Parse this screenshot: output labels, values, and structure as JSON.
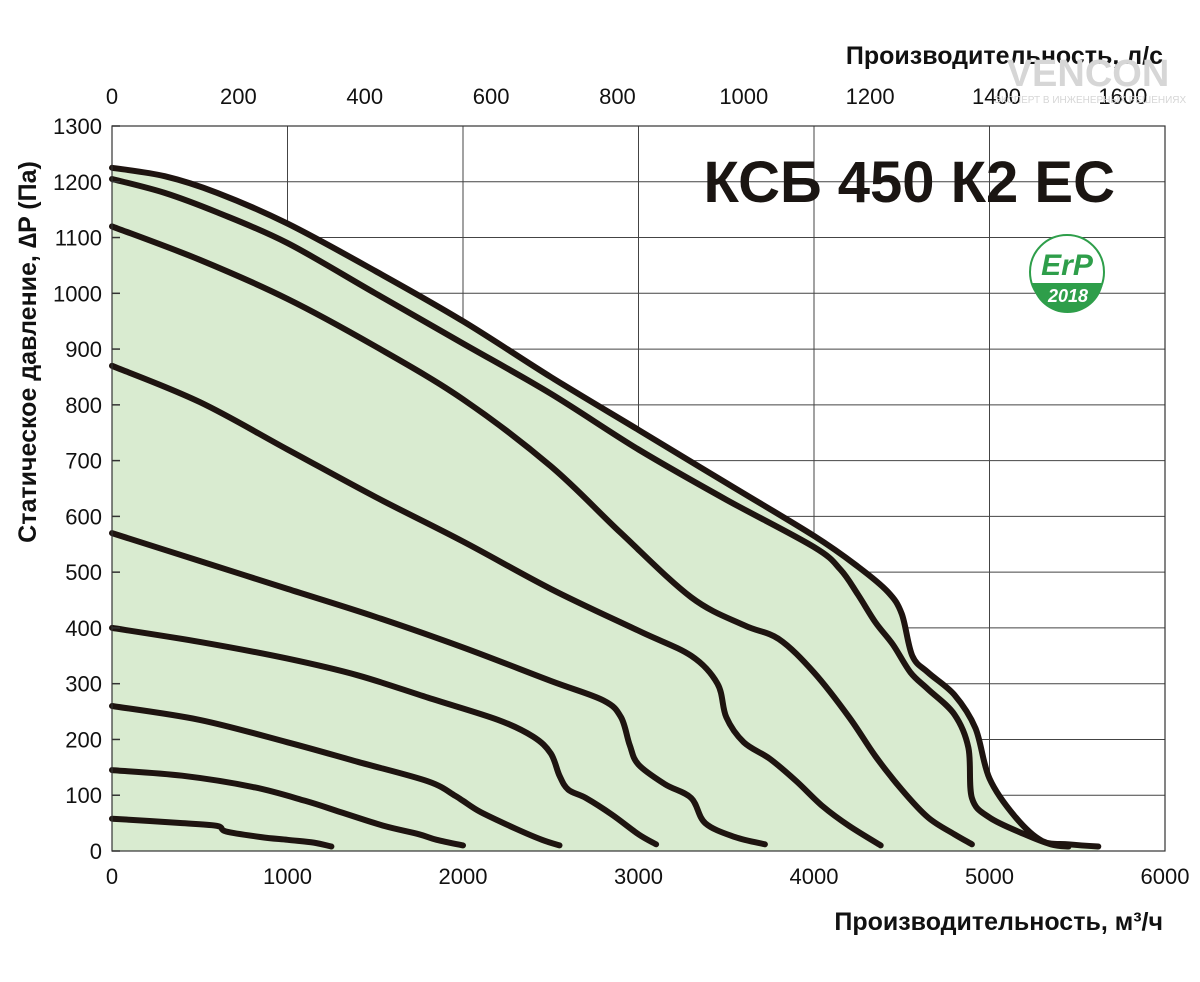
{
  "chart_data": {
    "type": "line",
    "title": "КСБ 450 К2 ЕС",
    "xlabel": "Производительность, м³/ч",
    "x2label": "Производительность, л/с",
    "ylabel": "Статическое давление, ∆P (Па)",
    "xlim": [
      0,
      6000
    ],
    "ylim": [
      0,
      1300
    ],
    "x2lim": [
      0,
      1666.67
    ],
    "x_ticks": [
      0,
      1000,
      2000,
      3000,
      4000,
      5000,
      6000
    ],
    "y_ticks": [
      0,
      100,
      200,
      300,
      400,
      500,
      600,
      700,
      800,
      900,
      1000,
      1100,
      1200,
      1300
    ],
    "x2_ticks": [
      0,
      200,
      400,
      600,
      800,
      1000,
      1200,
      1400,
      1600
    ],
    "grid": true,
    "fill_color": "#d9ebd0",
    "line_color": "#1e1410",
    "series": [
      {
        "points": [
          [
            0,
            1225
          ],
          [
            300,
            1210
          ],
          [
            600,
            1180
          ],
          [
            1000,
            1125
          ],
          [
            1500,
            1040
          ],
          [
            2000,
            950
          ],
          [
            2500,
            850
          ],
          [
            3000,
            755
          ],
          [
            3500,
            660
          ],
          [
            4000,
            565
          ],
          [
            4250,
            510
          ],
          [
            4420,
            465
          ],
          [
            4500,
            425
          ],
          [
            4560,
            350
          ],
          [
            4650,
            320
          ],
          [
            4800,
            280
          ],
          [
            4920,
            220
          ],
          [
            5000,
            130
          ],
          [
            5150,
            60
          ],
          [
            5300,
            18
          ],
          [
            5450,
            12
          ],
          [
            5620,
            8
          ]
        ]
      },
      {
        "points": [
          [
            0,
            1205
          ],
          [
            300,
            1180
          ],
          [
            600,
            1145
          ],
          [
            1000,
            1090
          ],
          [
            1500,
            1000
          ],
          [
            2000,
            910
          ],
          [
            2500,
            820
          ],
          [
            3000,
            720
          ],
          [
            3500,
            630
          ],
          [
            4000,
            545
          ],
          [
            4150,
            505
          ],
          [
            4250,
            460
          ],
          [
            4350,
            410
          ],
          [
            4450,
            370
          ],
          [
            4550,
            320
          ],
          [
            4650,
            290
          ],
          [
            4800,
            245
          ],
          [
            4880,
            185
          ],
          [
            4900,
            95
          ],
          [
            5000,
            60
          ],
          [
            5200,
            30
          ],
          [
            5350,
            12
          ],
          [
            5450,
            8
          ]
        ]
      },
      {
        "points": [
          [
            0,
            1120
          ],
          [
            500,
            1060
          ],
          [
            1000,
            990
          ],
          [
            1500,
            905
          ],
          [
            2000,
            810
          ],
          [
            2500,
            690
          ],
          [
            2900,
            570
          ],
          [
            3300,
            455
          ],
          [
            3600,
            405
          ],
          [
            3800,
            380
          ],
          [
            4000,
            320
          ],
          [
            4200,
            240
          ],
          [
            4350,
            170
          ],
          [
            4500,
            110
          ],
          [
            4650,
            60
          ],
          [
            4800,
            30
          ],
          [
            4900,
            12
          ]
        ]
      },
      {
        "points": [
          [
            0,
            870
          ],
          [
            500,
            805
          ],
          [
            1000,
            720
          ],
          [
            1500,
            635
          ],
          [
            2000,
            555
          ],
          [
            2500,
            470
          ],
          [
            3000,
            395
          ],
          [
            3300,
            350
          ],
          [
            3450,
            300
          ],
          [
            3500,
            240
          ],
          [
            3600,
            195
          ],
          [
            3750,
            165
          ],
          [
            3900,
            125
          ],
          [
            4050,
            80
          ],
          [
            4200,
            45
          ],
          [
            4380,
            10
          ]
        ]
      },
      {
        "points": [
          [
            0,
            570
          ],
          [
            500,
            520
          ],
          [
            1000,
            470
          ],
          [
            1500,
            420
          ],
          [
            2000,
            365
          ],
          [
            2500,
            305
          ],
          [
            2800,
            270
          ],
          [
            2900,
            240
          ],
          [
            2950,
            190
          ],
          [
            3000,
            155
          ],
          [
            3150,
            120
          ],
          [
            3300,
            95
          ],
          [
            3380,
            50
          ],
          [
            3550,
            25
          ],
          [
            3720,
            12
          ]
        ]
      },
      {
        "points": [
          [
            0,
            400
          ],
          [
            500,
            375
          ],
          [
            1000,
            345
          ],
          [
            1400,
            315
          ],
          [
            1800,
            275
          ],
          [
            2200,
            235
          ],
          [
            2400,
            205
          ],
          [
            2500,
            175
          ],
          [
            2550,
            135
          ],
          [
            2600,
            110
          ],
          [
            2700,
            95
          ],
          [
            2850,
            65
          ],
          [
            3000,
            30
          ],
          [
            3100,
            12
          ]
        ]
      },
      {
        "points": [
          [
            0,
            260
          ],
          [
            500,
            235
          ],
          [
            1000,
            195
          ],
          [
            1400,
            160
          ],
          [
            1800,
            125
          ],
          [
            1950,
            100
          ],
          [
            2000,
            90
          ],
          [
            2100,
            70
          ],
          [
            2300,
            40
          ],
          [
            2450,
            20
          ],
          [
            2550,
            10
          ]
        ]
      },
      {
        "points": [
          [
            0,
            145
          ],
          [
            400,
            135
          ],
          [
            800,
            115
          ],
          [
            1100,
            90
          ],
          [
            1300,
            70
          ],
          [
            1550,
            45
          ],
          [
            1750,
            30
          ],
          [
            1850,
            20
          ],
          [
            2000,
            10
          ]
        ]
      },
      {
        "points": [
          [
            0,
            58
          ],
          [
            400,
            50
          ],
          [
            600,
            45
          ],
          [
            650,
            35
          ],
          [
            850,
            25
          ],
          [
            1000,
            20
          ],
          [
            1150,
            15
          ],
          [
            1250,
            8
          ]
        ]
      }
    ]
  },
  "badge": {
    "top": "ErP",
    "bottom": "2018",
    "color": "#2e9e4a"
  },
  "watermark": {
    "brand": "VENCON",
    "tagline": "ЭКСПЕРТ В ИНЖЕНЕРНЫХ РЕШЕНИЯХ"
  }
}
